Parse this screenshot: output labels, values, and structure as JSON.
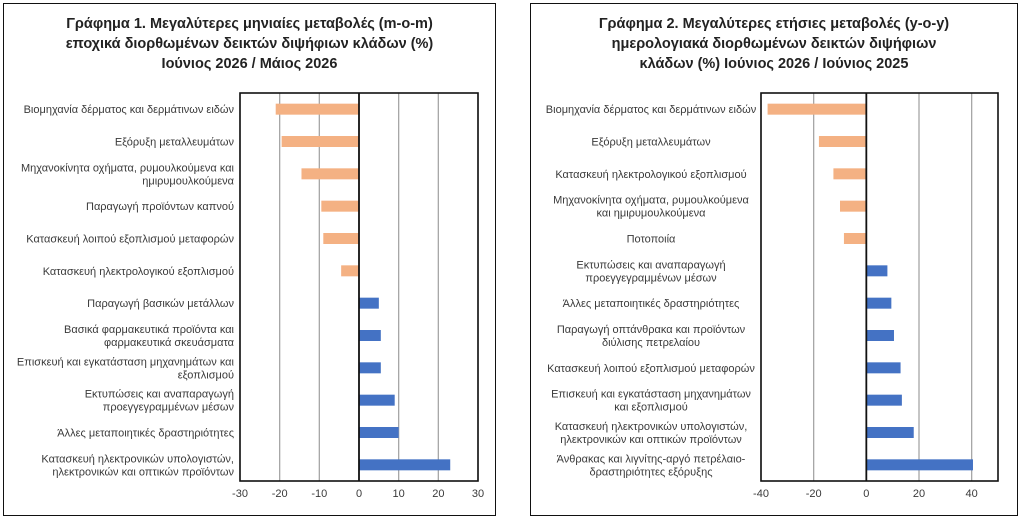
{
  "chart_data": [
    {
      "type": "bar",
      "orientation": "horizontal",
      "title": "Γράφημα 1. Μεγαλύτερες μηνιαίες μεταβολές (m-o-m)\nεποχικά διορθωμένων δεικτών διψήφιων κλάδων (%)\nΙούνιος 2026 / Μάιος 2026",
      "categories": [
        "Βιομηχανία δέρματος και δερμάτινων ειδών",
        "Εξόρυξη μεταλλευμάτων",
        "Μηχανοκίνητα οχήματα, ρυμουλκούμενα και ημιρυμουλκούμενα",
        "Παραγωγή προϊόντων καπνού",
        "Κατασκευή λοιπού εξοπλισμού μεταφορών",
        "Κατασκευή ηλεκτρολογικού εξοπλισμού",
        "Παραγωγή βασικών μετάλλων",
        "Βασικά φαρμακευτικά προϊόντα και φαρμακευτικά σκευάσματα",
        "Επισκευή και εγκατάσταση μηχανημάτων και εξοπλισμού",
        "Εκτυπώσεις και αναπαραγωγή προεγγεγραμμένων μέσων",
        "Άλλες μεταποιητικές δραστηριότητες",
        "Κατασκευή ηλεκτρονικών υπολογιστών, ηλεκτρονικών και οπτικών προϊόντων"
      ],
      "category_lines": [
        [
          "Βιομηχανία δέρματος και δερμάτινων ειδών"
        ],
        [
          "Εξόρυξη μεταλλευμάτων"
        ],
        [
          "Μηχανοκίνητα οχήματα, ρυμουλκούμενα και",
          "ημιρυμουλκούμενα"
        ],
        [
          "Παραγωγή προϊόντων καπνού"
        ],
        [
          "Κατασκευή λοιπού εξοπλισμού μεταφορών"
        ],
        [
          "Κατασκευή ηλεκτρολογικού εξοπλισμού"
        ],
        [
          "Παραγωγή βασικών μετάλλων"
        ],
        [
          "Βασικά φαρμακευτικά προϊόντα και",
          "φαρμακευτικά σκευάσματα"
        ],
        [
          "Επισκευή και εγκατάσταση μηχανημάτων και",
          "εξοπλισμού"
        ],
        [
          "Εκτυπώσεις και αναπαραγωγή",
          "προεγγεγραμμένων μέσων"
        ],
        [
          "Άλλες μεταποιητικές δραστηριότητες"
        ],
        [
          "Κατασκευή ηλεκτρονικών υπολογιστών,",
          "ηλεκτρονικών και οπτικών προϊόντων"
        ]
      ],
      "values": [
        -21,
        -19.5,
        -14.5,
        -9.5,
        -9,
        -4.5,
        5,
        5.5,
        5.5,
        9,
        10,
        23
      ],
      "xlim": [
        -30,
        30
      ],
      "xticks": [
        -30,
        -20,
        -10,
        0,
        10,
        20,
        30
      ],
      "grid": "vertical",
      "colors": {
        "negative": "#F4B183",
        "positive": "#4472C4"
      }
    },
    {
      "type": "bar",
      "orientation": "horizontal",
      "title": "Γράφημα 2. Μεγαλύτερες ετήσιες μεταβολές (y-o-y)\nημερολογιακά διορθωμένων δεικτών διψήφιων\nκλάδων (%) Ιούνιος 2026 / Ιούνιος  2025",
      "categories": [
        "Βιομηχανία δέρματος και δερμάτινων ειδών",
        "Εξόρυξη μεταλλευμάτων",
        "Κατασκευή ηλεκτρολογικού εξοπλισμού",
        "Μηχανοκίνητα οχήματα, ρυμουλκούμενα και ημιρυμουλκούμενα",
        "Ποτοποιία",
        "Εκτυπώσεις και αναπαραγωγή προεγγεγραμμένων μέσων",
        "Άλλες μεταποιητικές δραστηριότητες",
        "Παραγωγή οπτάνθρακα και προϊόντων διύλισης πετρελαίου",
        "Κατασκευή λοιπού εξοπλισμού μεταφορών",
        "Επισκευή και εγκατάσταση μηχανημάτων και εξοπλισμού",
        "Κατασκευή ηλεκτρονικών υπολογιστών, ηλεκτρονικών και οπτικών προϊόντων",
        "Άνθρακας και λιγνίτης-αργό πετρέλαιο-δραστηριότητες εξόρυξης"
      ],
      "category_lines": [
        [
          "Βιομηχανία δέρματος και δερμάτινων ειδών"
        ],
        [
          "Εξόρυξη μεταλλευμάτων"
        ],
        [
          "Κατασκευή ηλεκτρολογικού εξοπλισμού"
        ],
        [
          "Μηχανοκίνητα οχήματα, ρυμουλκούμενα",
          "και ημιρυμουλκούμενα"
        ],
        [
          "Ποτοποιία"
        ],
        [
          "Εκτυπώσεις και αναπαραγωγή",
          "προεγγεγραμμένων μέσων"
        ],
        [
          "Άλλες μεταποιητικές δραστηριότητες"
        ],
        [
          "Παραγωγή οπτάνθρακα και προϊόντων",
          "διύλισης πετρελαίου"
        ],
        [
          "Κατασκευή λοιπού εξοπλισμού μεταφορών"
        ],
        [
          "Επισκευή και εγκατάσταση μηχανημάτων",
          "και εξοπλισμού"
        ],
        [
          "Κατασκευή ηλεκτρονικών υπολογιστών,",
          "ηλεκτρονικών και οπτικών προϊόντων"
        ],
        [
          "Άνθρακας και λιγνίτης-αργό πετρέλαιο-",
          "δραστηριότητες εξόρυξης"
        ]
      ],
      "values": [
        -37.5,
        -18,
        -12.5,
        -10,
        -8.5,
        8,
        9.5,
        10.5,
        13,
        13.5,
        18,
        40.5
      ],
      "xlim": [
        -40,
        50
      ],
      "xticks": [
        -40,
        -20,
        0,
        20,
        40
      ],
      "grid": "vertical",
      "colors": {
        "negative": "#F4B183",
        "positive": "#4472C4"
      }
    }
  ]
}
